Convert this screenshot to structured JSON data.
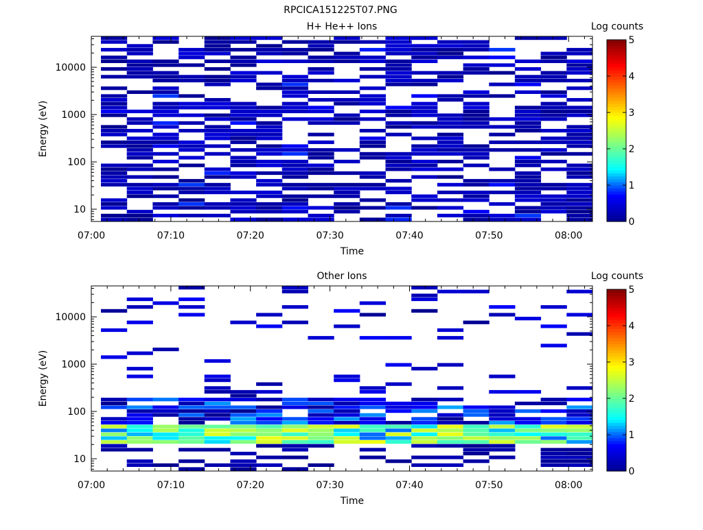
{
  "figure_title": "RPCICA151225T07.PNG",
  "colors": {
    "axis": "#000000",
    "background": "#ffffff",
    "colormap": [
      "#00008f",
      "#0000ff",
      "#00ffff",
      "#80ff80",
      "#ffff00",
      "#ff8000",
      "#ff0000",
      "#800000"
    ]
  },
  "chart_data": [
    {
      "type": "heatmap",
      "title": "H+ He++ Ions",
      "xlabel": "Time",
      "ylabel": "Energy (eV)",
      "colorbar_label": "Log counts",
      "colorbar_ticks": [
        "0",
        "1",
        "2",
        "3",
        "4",
        "5"
      ],
      "colorbar_range": [
        0,
        5
      ],
      "x_tick_labels": [
        "07:00",
        "07:10",
        "07:20",
        "07:30",
        "07:40",
        "07:50",
        "08:00"
      ],
      "y_tick_labels": [
        "10",
        "100",
        "1000",
        "10000"
      ],
      "y_scale": "log",
      "ylim": [
        5.5,
        45000
      ],
      "xlim_minutes": [
        0,
        63
      ],
      "time_bins": [
        "07:01",
        "07:04",
        "07:08",
        "07:11",
        "07:14",
        "07:17",
        "07:21",
        "07:24",
        "07:27",
        "07:31",
        "07:34",
        "07:37",
        "07:41",
        "07:44",
        "07:47",
        "07:50",
        "07:54",
        "07:57",
        "08:00"
      ],
      "profile": {
        "description": "sparse low counts (about 0-0.5) across 7-40000 eV",
        "max_log_counts": 0.9
      }
    },
    {
      "type": "heatmap",
      "title": "Other Ions",
      "xlabel": "Time",
      "ylabel": "Energy (eV)",
      "colorbar_label": "Log counts",
      "colorbar_ticks": [
        "0",
        "1",
        "2",
        "3",
        "4",
        "5"
      ],
      "colorbar_range": [
        0,
        5
      ],
      "x_tick_labels": [
        "07:00",
        "07:10",
        "07:20",
        "07:30",
        "07:40",
        "07:50",
        "08:00"
      ],
      "y_tick_labels": [
        "10",
        "100",
        "1000",
        "10000"
      ],
      "y_scale": "log",
      "ylim": [
        5.5,
        45000
      ],
      "xlim_minutes": [
        0,
        63
      ],
      "time_bins": [
        "07:01",
        "07:04",
        "07:08",
        "07:11",
        "07:14",
        "07:17",
        "07:21",
        "07:24",
        "07:27",
        "07:31",
        "07:34",
        "07:37",
        "07:41",
        "07:44",
        "07:47",
        "07:50",
        "07:54",
        "07:57",
        "08:00"
      ],
      "profile": {
        "description": "enhanced band (about 1-2.8) at 20-50 eV, moderate counts up to ~200 eV, sparse above",
        "band_energy_eV": [
          20,
          50
        ],
        "band_peak_log_counts": 2.8
      }
    }
  ]
}
